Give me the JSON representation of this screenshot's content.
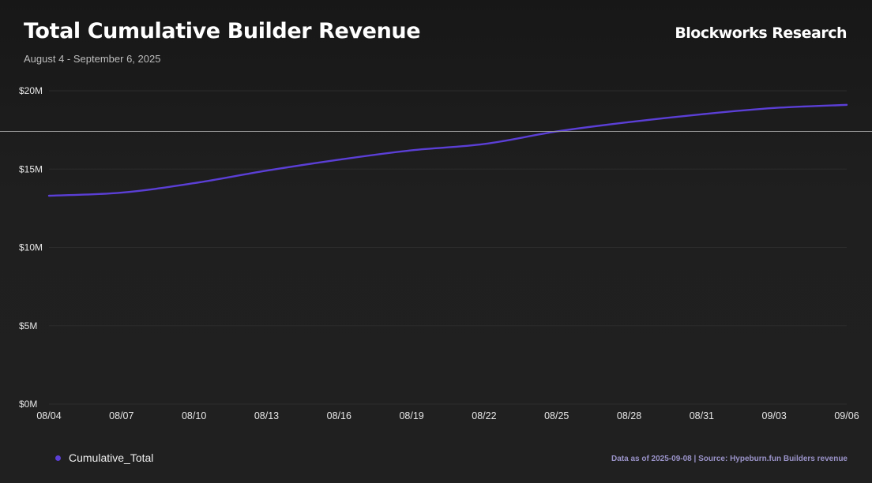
{
  "header": {
    "title": "Total Cumulative Builder Revenue",
    "subtitle": "August 4 - September 6, 2025",
    "brand": "Blockworks Research"
  },
  "footer": {
    "source": "Data as of 2025-09-08 | Source: Hypeburn.fun Builders revenue"
  },
  "colors": {
    "series": "#5b3fd6",
    "grid": "#2c2c2c",
    "background": "#1c1c1c"
  },
  "chart_data": {
    "type": "line",
    "title": "Total Cumulative Builder Revenue",
    "subtitle": "August 4 - September 6, 2025",
    "xlabel": "",
    "ylabel": "",
    "x_tick_labels": [
      "08/04",
      "08/07",
      "08/10",
      "08/13",
      "08/16",
      "08/19",
      "08/22",
      "08/25",
      "08/28",
      "08/31",
      "09/03",
      "09/06"
    ],
    "y_tick_labels": [
      "$0M",
      "$5M",
      "$10M",
      "$15M",
      "$20M"
    ],
    "y_ticks": [
      0,
      5,
      10,
      15,
      20
    ],
    "ylim": [
      0,
      20
    ],
    "y_unit": "USD millions",
    "grid": true,
    "legend_position": "bottom-left",
    "series": [
      {
        "name": "Cumulative_Total",
        "x": [
          "08/04",
          "08/07",
          "08/10",
          "08/13",
          "08/16",
          "08/19",
          "08/22",
          "08/25",
          "08/28",
          "08/31",
          "09/03",
          "09/06"
        ],
        "values": [
          13.3,
          13.5,
          14.1,
          14.9,
          15.6,
          16.2,
          16.6,
          17.4,
          18.0,
          18.5,
          18.9,
          19.1
        ]
      }
    ]
  }
}
